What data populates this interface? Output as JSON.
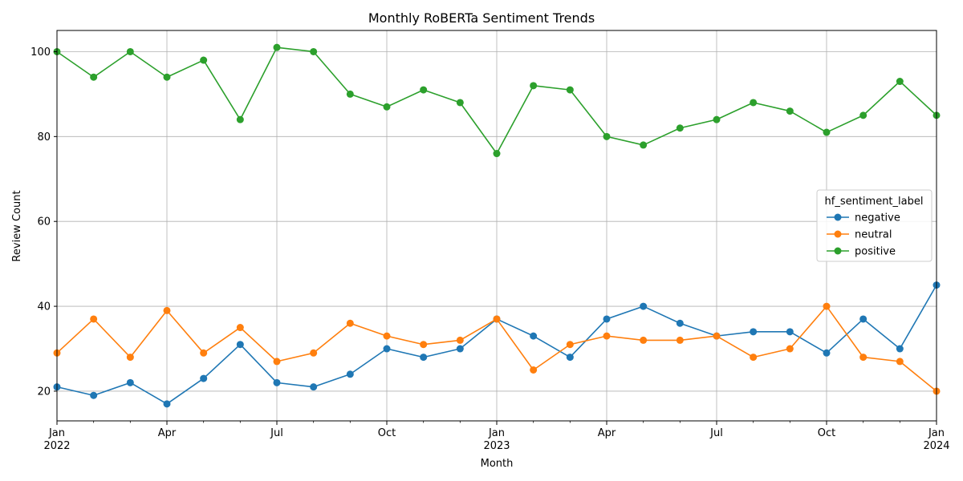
{
  "chart_data": {
    "type": "line",
    "title": "Monthly RoBERTa Sentiment Trends",
    "xlabel": "Month",
    "ylabel": "Review Count",
    "x": [
      "2022-01",
      "2022-02",
      "2022-03",
      "2022-04",
      "2022-05",
      "2022-06",
      "2022-07",
      "2022-08",
      "2022-09",
      "2022-10",
      "2022-11",
      "2022-12",
      "2023-01",
      "2023-02",
      "2023-03",
      "2023-04",
      "2023-05",
      "2023-06",
      "2023-07",
      "2023-08",
      "2023-09",
      "2023-10",
      "2023-11",
      "2023-12",
      "2024-01"
    ],
    "x_major_ticks": [
      {
        "x": "2022-01",
        "label": "Jan",
        "year": "2022"
      },
      {
        "x": "2022-04",
        "label": "Apr",
        "year": ""
      },
      {
        "x": "2022-07",
        "label": "Jul",
        "year": ""
      },
      {
        "x": "2022-10",
        "label": "Oct",
        "year": ""
      },
      {
        "x": "2023-01",
        "label": "Jan",
        "year": "2023"
      },
      {
        "x": "2023-04",
        "label": "Apr",
        "year": ""
      },
      {
        "x": "2023-07",
        "label": "Jul",
        "year": ""
      },
      {
        "x": "2023-10",
        "label": "Oct",
        "year": ""
      },
      {
        "x": "2024-01",
        "label": "Jan",
        "year": "2024"
      }
    ],
    "yticks": [
      20,
      40,
      60,
      80,
      100
    ],
    "ylim": [
      13,
      105
    ],
    "grid": true,
    "legend": {
      "title": "hf_sentiment_label",
      "placement": "center-right"
    },
    "series": [
      {
        "name": "negative",
        "color": "#1f77b4",
        "values": [
          21,
          19,
          22,
          17,
          23,
          31,
          22,
          21,
          24,
          30,
          28,
          30,
          37,
          33,
          28,
          37,
          40,
          36,
          33,
          34,
          34,
          29,
          37,
          30,
          45
        ]
      },
      {
        "name": "neutral",
        "color": "#ff7f0e",
        "values": [
          29,
          37,
          28,
          39,
          29,
          35,
          27,
          29,
          36,
          33,
          31,
          32,
          37,
          25,
          31,
          33,
          32,
          32,
          33,
          28,
          30,
          40,
          28,
          27,
          20
        ]
      },
      {
        "name": "positive",
        "color": "#2ca02c",
        "values": [
          100,
          94,
          100,
          94,
          98,
          84,
          101,
          100,
          90,
          87,
          91,
          88,
          76,
          92,
          91,
          80,
          78,
          82,
          84,
          88,
          86,
          81,
          85,
          93,
          85
        ]
      }
    ]
  }
}
